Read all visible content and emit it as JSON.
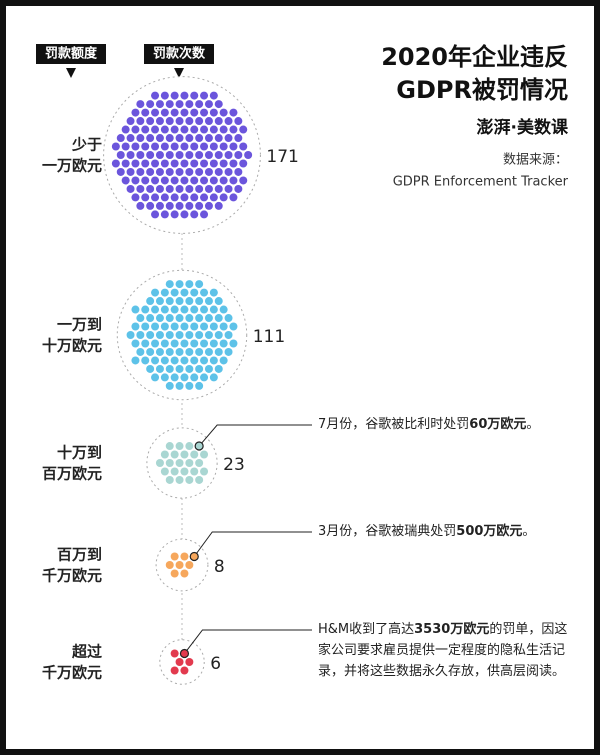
{
  "headers": [
    "罚款额度",
    "罚款次数"
  ],
  "title_lines": [
    "2020年企业违反",
    "GDPR被罚情况"
  ],
  "logo": "澎湃·美数课",
  "source": [
    "数据来源：",
    "GDPR Enforcement Tracker"
  ],
  "chart_data": {
    "type": "dot",
    "categories": [
      [
        "少于",
        "一万欧元"
      ],
      [
        "一万到",
        "十万欧元"
      ],
      [
        "十万到",
        "百万欧元"
      ],
      [
        "百万到",
        "千万欧元"
      ],
      [
        "超过",
        "千万欧元"
      ]
    ],
    "values": [
      171,
      111,
      23,
      8,
      6
    ],
    "colors": [
      "#6b55dc",
      "#5dc2e8",
      "#a9d6d2",
      "#f6a75c",
      "#e23a4e"
    ],
    "annotations": [
      {
        "category": 2,
        "parts": [
          "7月份，谷歌被比利时处罚",
          "60万欧元",
          "。"
        ]
      },
      {
        "category": 3,
        "parts": [
          "3月份，谷歌被瑞典处罚",
          "500万欧元",
          "。"
        ]
      },
      {
        "category": 4,
        "parts": [
          "H&M收到了高达",
          "3530万欧元",
          "的罚单，因这家公司要求雇员提供一定程度的隐私生活记录，并将这些数据永久存放，供高层阅读。"
        ]
      }
    ]
  }
}
